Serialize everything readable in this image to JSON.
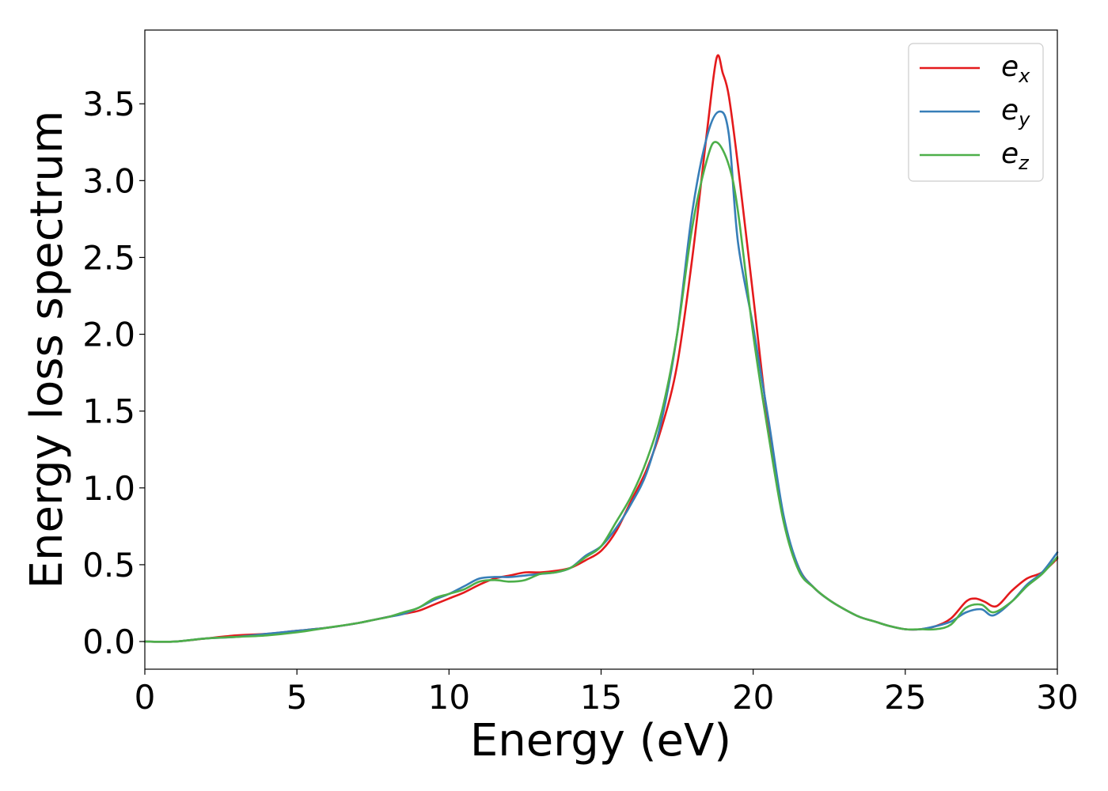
{
  "chart_data": {
    "type": "line",
    "title": "",
    "xlabel": "Energy (eV)",
    "ylabel": "Energy loss spectrum",
    "xlim": [
      0,
      30
    ],
    "ylim": [
      -0.18,
      3.98
    ],
    "xticks": [
      0,
      5,
      10,
      15,
      20,
      25,
      30
    ],
    "xtick_labels": [
      "0",
      "5",
      "10",
      "15",
      "20",
      "25",
      "30"
    ],
    "yticks": [
      0.0,
      0.5,
      1.0,
      1.5,
      2.0,
      2.5,
      3.0,
      3.5
    ],
    "ytick_labels": [
      "0.0",
      "0.5",
      "1.0",
      "1.5",
      "2.0",
      "2.5",
      "3.0",
      "3.5"
    ],
    "grid": false,
    "legend_position": "top-right",
    "series": [
      {
        "name": "e",
        "subscript": "x",
        "color": "#e41a1c",
        "x": [
          0,
          1,
          2,
          3,
          4,
          5,
          6,
          7,
          7.5,
          8,
          8.5,
          9,
          9.5,
          10,
          10.5,
          11,
          11.5,
          12,
          12.5,
          13,
          13.5,
          14,
          14.5,
          15,
          15.5,
          16,
          16.5,
          17,
          17.5,
          18,
          18.5,
          18.8,
          19,
          19.2,
          19.5,
          20,
          20.5,
          21,
          21.5,
          22,
          22.5,
          23,
          23.5,
          24,
          24.5,
          25,
          25.5,
          26,
          26.5,
          27,
          27.3,
          27.6,
          28,
          28.5,
          29,
          29.5,
          30
        ],
        "y": [
          0.0,
          0.0,
          0.02,
          0.04,
          0.05,
          0.07,
          0.09,
          0.12,
          0.14,
          0.16,
          0.18,
          0.2,
          0.24,
          0.28,
          0.32,
          0.37,
          0.41,
          0.43,
          0.45,
          0.45,
          0.46,
          0.48,
          0.53,
          0.59,
          0.72,
          0.92,
          1.12,
          1.4,
          1.8,
          2.5,
          3.35,
          3.8,
          3.7,
          3.55,
          3.1,
          2.25,
          1.4,
          0.8,
          0.48,
          0.35,
          0.27,
          0.21,
          0.16,
          0.13,
          0.1,
          0.08,
          0.08,
          0.1,
          0.15,
          0.26,
          0.28,
          0.26,
          0.23,
          0.33,
          0.41,
          0.45,
          0.54
        ]
      },
      {
        "name": "e",
        "subscript": "y",
        "color": "#377eb8",
        "x": [
          0,
          1,
          2,
          3,
          4,
          5,
          6,
          7,
          7.5,
          8,
          8.5,
          9,
          9.5,
          10,
          10.5,
          11,
          11.5,
          12,
          12.5,
          13,
          13.5,
          14,
          14.5,
          15,
          15.5,
          16,
          16.5,
          17,
          17.5,
          18,
          18.5,
          18.9,
          19.2,
          19.5,
          20,
          20.5,
          21,
          21.5,
          22,
          22.5,
          23,
          23.5,
          24,
          24.5,
          25,
          25.5,
          26,
          26.5,
          27,
          27.5,
          27.9,
          28.5,
          29,
          29.5,
          30
        ],
        "y": [
          0.0,
          0.0,
          0.02,
          0.03,
          0.05,
          0.07,
          0.09,
          0.12,
          0.14,
          0.16,
          0.18,
          0.22,
          0.27,
          0.31,
          0.36,
          0.41,
          0.42,
          0.42,
          0.43,
          0.44,
          0.45,
          0.48,
          0.56,
          0.62,
          0.74,
          0.9,
          1.1,
          1.45,
          2.0,
          2.8,
          3.3,
          3.45,
          3.3,
          2.6,
          2.05,
          1.45,
          0.82,
          0.48,
          0.35,
          0.27,
          0.21,
          0.16,
          0.13,
          0.1,
          0.08,
          0.08,
          0.1,
          0.13,
          0.19,
          0.21,
          0.17,
          0.26,
          0.37,
          0.45,
          0.58
        ]
      },
      {
        "name": "e",
        "subscript": "z",
        "color": "#4daf4a",
        "x": [
          0,
          1,
          2,
          3,
          4,
          5,
          6,
          7,
          7.5,
          8,
          8.5,
          9,
          9.5,
          10,
          10.5,
          11,
          11.5,
          12,
          12.5,
          13,
          13.5,
          14,
          14.5,
          15,
          15.5,
          16,
          16.5,
          17,
          17.5,
          18,
          18.5,
          18.8,
          19.2,
          19.5,
          20,
          20.5,
          21,
          21.5,
          22,
          22.5,
          23,
          23.5,
          24,
          24.5,
          25,
          25.5,
          26,
          26.5,
          27,
          27.5,
          27.9,
          28.5,
          29,
          29.5,
          30
        ],
        "y": [
          0.0,
          0.0,
          0.02,
          0.03,
          0.04,
          0.06,
          0.09,
          0.12,
          0.14,
          0.16,
          0.19,
          0.22,
          0.28,
          0.31,
          0.34,
          0.39,
          0.4,
          0.39,
          0.4,
          0.44,
          0.45,
          0.48,
          0.55,
          0.62,
          0.78,
          0.95,
          1.18,
          1.5,
          2.0,
          2.7,
          3.15,
          3.25,
          3.1,
          2.8,
          2.0,
          1.35,
          0.78,
          0.46,
          0.35,
          0.27,
          0.21,
          0.16,
          0.13,
          0.1,
          0.08,
          0.08,
          0.08,
          0.11,
          0.22,
          0.24,
          0.19,
          0.26,
          0.36,
          0.44,
          0.55
        ]
      }
    ]
  }
}
